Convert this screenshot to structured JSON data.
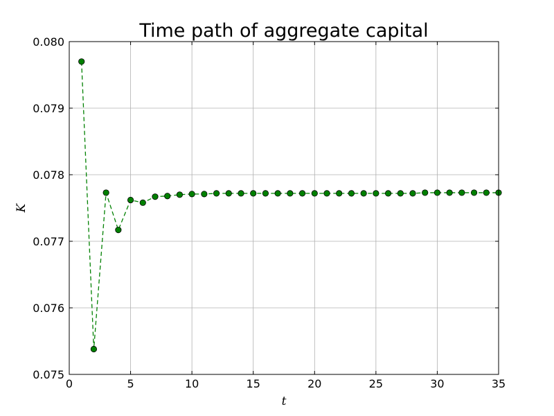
{
  "chart_data": {
    "type": "line",
    "title": "Time path of aggregate capital",
    "xlabel": "t",
    "ylabel": "K",
    "xlim": [
      0,
      35
    ],
    "ylim": [
      0.075,
      0.08
    ],
    "x_ticks": [
      "0",
      "5",
      "10",
      "15",
      "20",
      "25",
      "30",
      "35"
    ],
    "x_tick_values": [
      0,
      5,
      10,
      15,
      20,
      25,
      30,
      35
    ],
    "y_ticks": [
      "0.075",
      "0.076",
      "0.077",
      "0.078",
      "0.079",
      "0.080"
    ],
    "y_tick_values": [
      0.075,
      0.076,
      0.077,
      0.078,
      0.079,
      0.08
    ],
    "grid": true,
    "line_style": "dashed",
    "marker": "circle",
    "series": [
      {
        "color": "#008000",
        "marker_edge_color": "#000000",
        "x": [
          1,
          2,
          3,
          4,
          5,
          6,
          7,
          8,
          9,
          10,
          11,
          12,
          13,
          14,
          15,
          16,
          17,
          18,
          19,
          20,
          21,
          22,
          23,
          24,
          25,
          26,
          27,
          28,
          29,
          30,
          31,
          32,
          33,
          34,
          35
        ],
        "y": [
          0.0797,
          0.07538,
          0.07773,
          0.07717,
          0.07762,
          0.07758,
          0.07767,
          0.07768,
          0.0777,
          0.07771,
          0.07771,
          0.07772,
          0.07772,
          0.07772,
          0.07772,
          0.07772,
          0.07772,
          0.07772,
          0.07772,
          0.07772,
          0.07772,
          0.07772,
          0.07772,
          0.07772,
          0.07772,
          0.07772,
          0.07772,
          0.07772,
          0.07773,
          0.07773,
          0.07773,
          0.07773,
          0.07773,
          0.07773,
          0.07773
        ]
      }
    ]
  }
}
